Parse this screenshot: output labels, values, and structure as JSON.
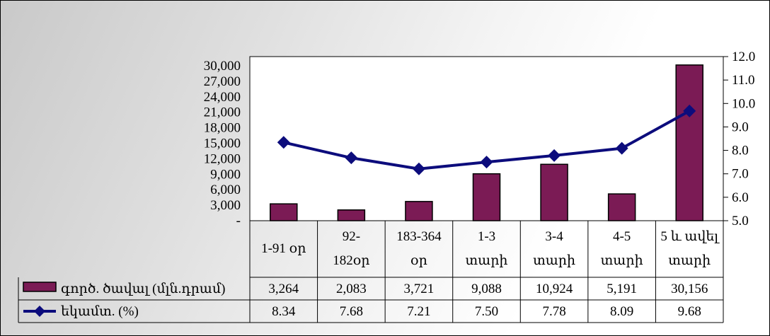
{
  "chart_data": {
    "type": "bar",
    "title": "",
    "xlabel": "",
    "ylabel": "",
    "categories": [
      [
        "1-91 օր"
      ],
      [
        "92-",
        "182օր"
      ],
      [
        "183-364",
        "օր"
      ],
      [
        "1-3",
        "տարի"
      ],
      [
        "3-4",
        "տարի"
      ],
      [
        "4-5",
        "տարի"
      ],
      [
        "5 և ավել",
        "տարի"
      ]
    ],
    "series": [
      {
        "name": "գործ. ծավալ (մլն.դրամ)",
        "type": "bar",
        "axis": "left",
        "color": "#7b1b55",
        "values": [
          3264,
          2083,
          3721,
          9088,
          10924,
          5191,
          30156
        ],
        "labels": [
          "3,264",
          "2,083",
          "3,721",
          "9,088",
          "10,924",
          "5,191",
          "30,156"
        ]
      },
      {
        "name": "եկամտ. (%)",
        "type": "line",
        "axis": "right",
        "color": "#0c0c7c",
        "marker": "diamond",
        "values": [
          8.34,
          7.68,
          7.21,
          7.5,
          7.78,
          8.09,
          9.68
        ],
        "labels": [
          "8.34",
          "7.68",
          "7.21",
          "7.50",
          "7.78",
          "8.09",
          "9.68"
        ]
      }
    ],
    "y_left": {
      "ylim": [
        0,
        30000
      ],
      "ticks": [
        0,
        3000,
        6000,
        9000,
        12000,
        15000,
        18000,
        21000,
        24000,
        27000,
        30000
      ],
      "tick_labels": [
        "-",
        "3,000",
        "6,000",
        "9,000",
        "12,000",
        "15,000",
        "18,000",
        "21,000",
        "24,000",
        "27,000",
        "30,000"
      ]
    },
    "y_right": {
      "ylim": [
        5.0,
        12.0
      ],
      "ticks": [
        5,
        6,
        7,
        8,
        9,
        10,
        11,
        12
      ],
      "tick_labels": [
        "5.0",
        "6.0",
        "7.0",
        "8.0",
        "9.0",
        "10.0",
        "11.0",
        "12.0"
      ]
    },
    "grid": false,
    "legend": "data-table"
  }
}
